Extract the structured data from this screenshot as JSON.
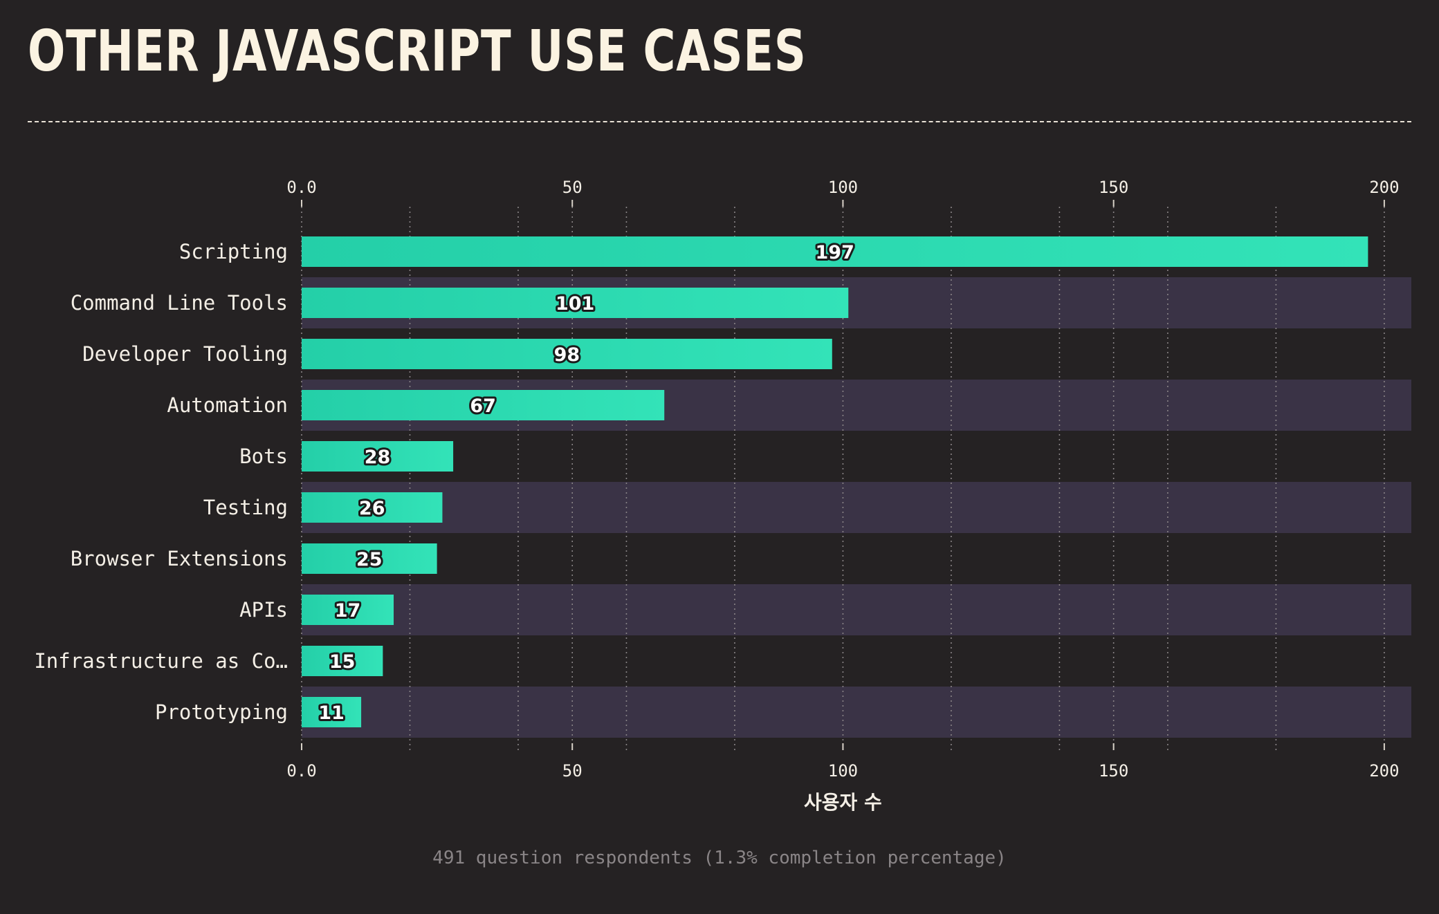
{
  "title": "OTHER JAVASCRIPT USE CASES",
  "footer": "491 question respondents (1.3% completion percentage)",
  "colors": {
    "background": "#252223",
    "band": "#3a3346",
    "bar_start": "#24cfa8",
    "bar_end": "#33e3b8",
    "text": "#f4efe6",
    "grid": "#8a8587"
  },
  "chart_data": {
    "type": "bar",
    "orientation": "horizontal",
    "categories": [
      "Scripting",
      "Command Line Tools",
      "Developer Tooling",
      "Automation",
      "Bots",
      "Testing",
      "Browser Extensions",
      "APIs",
      "Infrastructure as Co…",
      "Prototyping"
    ],
    "values": [
      197,
      101,
      98,
      67,
      28,
      26,
      25,
      17,
      15,
      11
    ],
    "xlabel": "사용자 수",
    "ylabel": "",
    "xlim": [
      0,
      205
    ],
    "tick_values": [
      0,
      50,
      100,
      150,
      200
    ],
    "tick_labels": [
      "0.0",
      "50",
      "100",
      "150",
      "200"
    ],
    "minor_grid_values": [
      20,
      40,
      60,
      80,
      120,
      140,
      160,
      180
    ],
    "grid": true,
    "axis_position": "top-and-bottom"
  }
}
